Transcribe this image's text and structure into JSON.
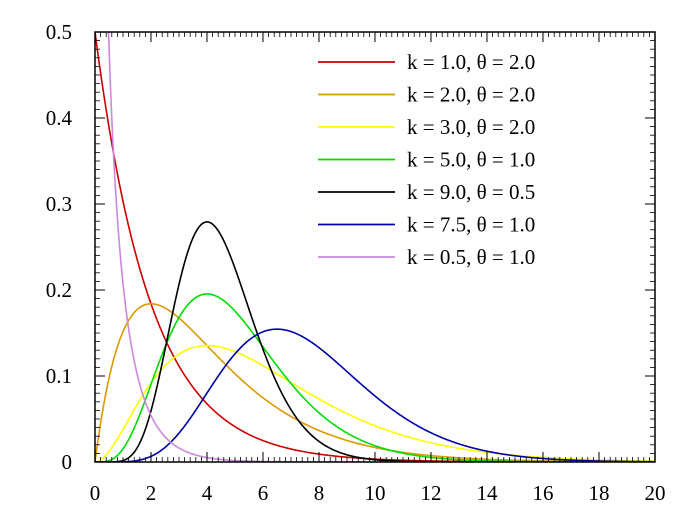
{
  "chart_data": {
    "type": "line",
    "title": "",
    "xlabel": "",
    "ylabel": "",
    "xlim": [
      0,
      20
    ],
    "ylim": [
      0,
      0.5
    ],
    "x_ticks": [
      0,
      2,
      4,
      6,
      8,
      10,
      12,
      14,
      16,
      18,
      20
    ],
    "x_tick_labels": [
      "0",
      "2",
      "4",
      "6",
      "8",
      "10",
      "12",
      "14",
      "16",
      "18",
      "20"
    ],
    "y_ticks": [
      0,
      0.1,
      0.2,
      0.3,
      0.4,
      0.5
    ],
    "y_tick_labels": [
      "0",
      "0.1",
      "0.2",
      "0.3",
      "0.4",
      "0.5"
    ],
    "grid": false,
    "legend_position": "top-right",
    "curve_family": "gamma-pdf",
    "series": [
      {
        "name": "k = 1.0, θ = 2.0",
        "k": 1.0,
        "theta": 2.0,
        "color": "#cc0000"
      },
      {
        "name": "k = 2.0, θ = 2.0",
        "k": 2.0,
        "theta": 2.0,
        "color": "#dd9900"
      },
      {
        "name": "k = 3.0, θ = 2.0",
        "k": 3.0,
        "theta": 2.0,
        "color": "#ffff00"
      },
      {
        "name": "k = 5.0, θ = 1.0",
        "k": 5.0,
        "theta": 1.0,
        "color": "#00dd00"
      },
      {
        "name": "k = 9.0, θ = 0.5",
        "k": 9.0,
        "theta": 0.5,
        "color": "#000000"
      },
      {
        "name": "k = 7.5, θ = 1.0",
        "k": 7.5,
        "theta": 1.0,
        "color": "#0000aa"
      },
      {
        "name": "k = 0.5, θ = 1.0",
        "k": 0.5,
        "theta": 1.0,
        "color": "#cc88dd"
      }
    ]
  }
}
